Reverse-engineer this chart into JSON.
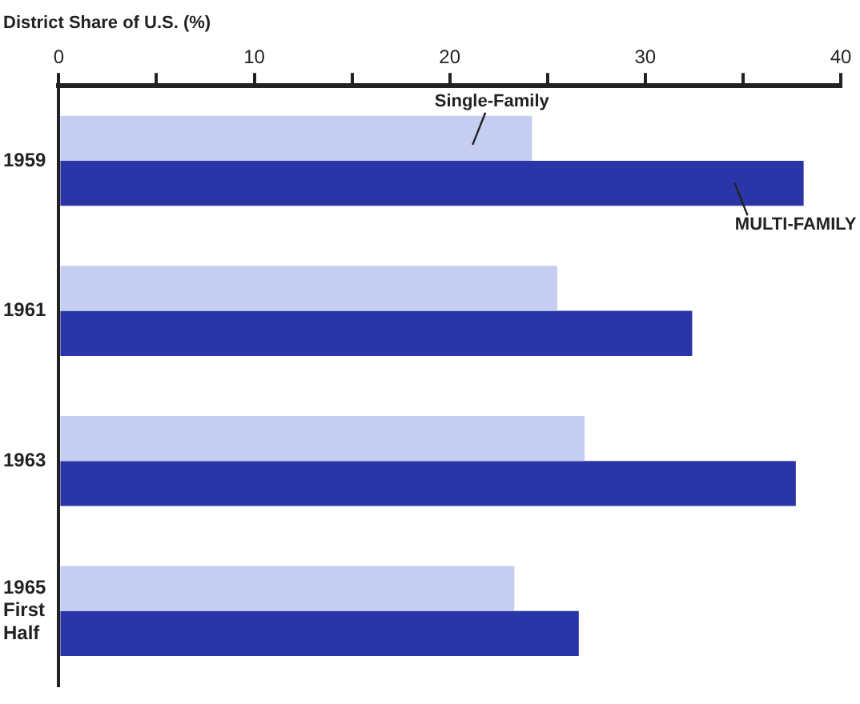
{
  "chart_data": {
    "type": "bar",
    "orientation": "horizontal",
    "title": "District Share of U.S. (%)",
    "categories": [
      "1959",
      "1961",
      "1963",
      "1965 First Half"
    ],
    "series": [
      {
        "name": "Single-Family",
        "color": "#c5cdf0",
        "values": [
          24.2,
          25.5,
          26.9,
          23.3
        ]
      },
      {
        "name": "MULTI-FAMILY",
        "color": "#2a36a8",
        "values": [
          38.1,
          32.4,
          37.7,
          26.6
        ]
      }
    ],
    "xlim": [
      0,
      40
    ],
    "xticks": [
      0,
      {
        "value": 5,
        "label": null
      },
      10,
      {
        "value": 15,
        "label": null
      },
      20,
      {
        "value": 25,
        "label": null
      },
      30,
      {
        "value": 35,
        "label": null
      },
      40
    ],
    "grid": false,
    "legend": false
  }
}
